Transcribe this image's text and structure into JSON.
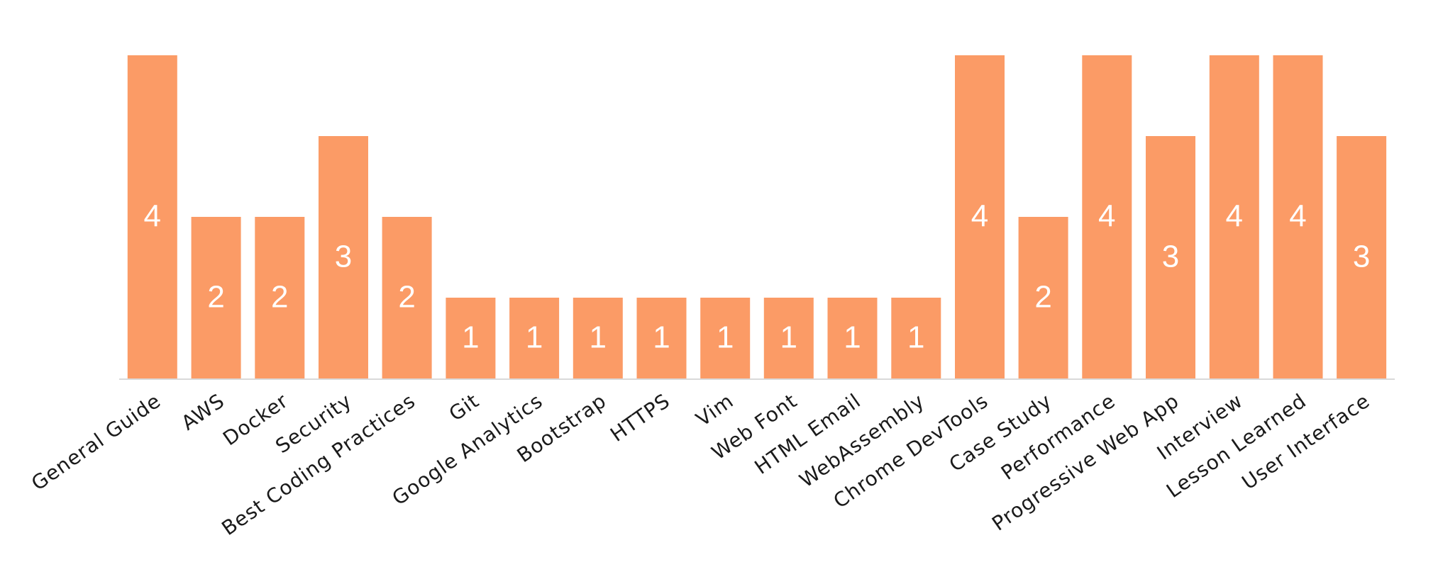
{
  "chart_data": {
    "type": "bar",
    "categories": [
      "General Guide",
      "AWS",
      "Docker",
      "Security",
      "Best Coding Practices",
      "Git",
      "Google Analytics",
      "Bootstrap",
      "HTTPS",
      "Vim",
      "Web Font",
      "HTML Email",
      "WebAssembly",
      "Chrome DevTools",
      "Case Study",
      "Performance",
      "Progressive Web App",
      "Interview",
      "Lesson Learned",
      "User Interface"
    ],
    "values": [
      4,
      2,
      2,
      3,
      2,
      1,
      1,
      1,
      1,
      1,
      1,
      1,
      1,
      4,
      2,
      4,
      3,
      4,
      4,
      3
    ],
    "ylim": [
      0,
      4
    ],
    "grid": false,
    "data_labels": true,
    "colors": {
      "bar": "#FB9B66",
      "axis": "#D9D9D9",
      "label": "#FFFFFF",
      "tick": "#1A1A1A"
    }
  }
}
